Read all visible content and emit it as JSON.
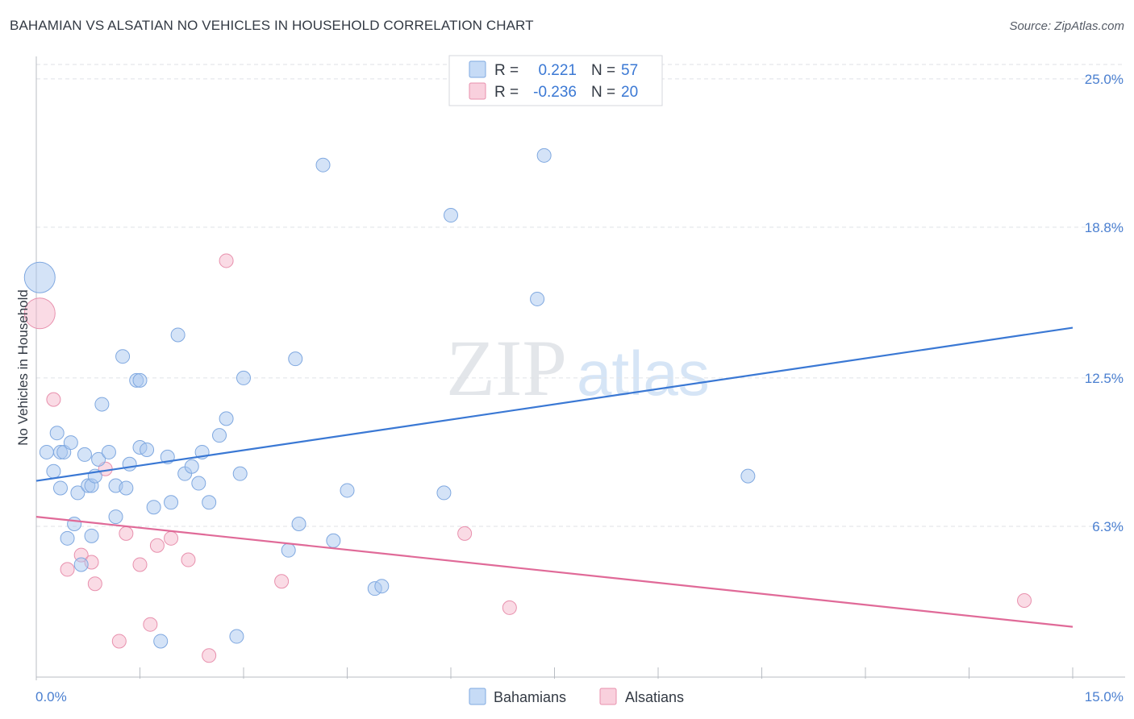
{
  "title": "BAHAMIAN VS ALSATIAN NO VEHICLES IN HOUSEHOLD CORRELATION CHART",
  "source": "Source: ZipAtlas.com",
  "watermark": {
    "zip": "ZIP",
    "atlas": "atlas"
  },
  "legend": {
    "rows": [
      {
        "r_label": "R =",
        "r_value": "0.221",
        "n_label": "N =",
        "n_value": "57",
        "color": "#a9c8f0"
      },
      {
        "r_label": "R =",
        "r_value": "-0.236",
        "n_label": "N =",
        "n_value": "20",
        "color": "#f5b8cb"
      }
    ]
  },
  "bottom_legend": [
    "Bahamians",
    "Alsatians"
  ],
  "chart_data": {
    "type": "scatter",
    "title": "BAHAMIAN VS ALSATIAN NO VEHICLES IN HOUSEHOLD CORRELATION CHART",
    "xlabel": "",
    "ylabel": "No Vehicles in Household",
    "xlim": [
      0,
      15
    ],
    "ylim": [
      0,
      25.6
    ],
    "x_tick_labels": [
      "0.0%",
      "15.0%"
    ],
    "y_ticks": [
      6.3,
      12.5,
      18.8,
      25.0
    ],
    "y_tick_labels": [
      "6.3%",
      "12.5%",
      "18.8%",
      "25.0%"
    ],
    "grid": "horizontal dashed",
    "legend_position": "top-center",
    "series": [
      {
        "name": "Bahamians",
        "color": "#a9c8f0",
        "line_color": "#3a78d4",
        "trend": {
          "x": [
            0,
            15
          ],
          "y": [
            8.2,
            14.6
          ]
        },
        "points": [
          [
            0.05,
            16.7
          ],
          [
            0.15,
            9.4
          ],
          [
            0.25,
            8.6
          ],
          [
            0.3,
            10.2
          ],
          [
            0.35,
            9.4
          ],
          [
            0.4,
            9.4
          ],
          [
            0.35,
            7.9
          ],
          [
            0.45,
            5.8
          ],
          [
            0.5,
            9.8
          ],
          [
            0.55,
            6.4
          ],
          [
            0.6,
            7.7
          ],
          [
            0.65,
            4.7
          ],
          [
            0.7,
            9.3
          ],
          [
            0.75,
            8.0
          ],
          [
            0.8,
            5.9
          ],
          [
            0.8,
            8.0
          ],
          [
            0.85,
            8.4
          ],
          [
            0.9,
            9.1
          ],
          [
            0.95,
            11.4
          ],
          [
            1.05,
            9.4
          ],
          [
            1.15,
            6.7
          ],
          [
            1.15,
            8.0
          ],
          [
            1.25,
            13.4
          ],
          [
            1.3,
            7.9
          ],
          [
            1.35,
            8.9
          ],
          [
            1.45,
            12.4
          ],
          [
            1.5,
            12.4
          ],
          [
            1.5,
            9.6
          ],
          [
            1.6,
            9.5
          ],
          [
            1.7,
            7.1
          ],
          [
            1.8,
            1.5
          ],
          [
            1.9,
            9.2
          ],
          [
            1.95,
            7.3
          ],
          [
            2.05,
            14.3
          ],
          [
            2.15,
            8.5
          ],
          [
            2.25,
            8.8
          ],
          [
            2.35,
            8.1
          ],
          [
            2.4,
            9.4
          ],
          [
            2.5,
            7.3
          ],
          [
            2.65,
            10.1
          ],
          [
            2.75,
            10.8
          ],
          [
            2.9,
            1.7
          ],
          [
            2.95,
            8.5
          ],
          [
            3.0,
            12.5
          ],
          [
            3.65,
            5.3
          ],
          [
            3.75,
            13.3
          ],
          [
            3.8,
            6.4
          ],
          [
            4.15,
            21.4
          ],
          [
            4.3,
            5.7
          ],
          [
            4.5,
            7.8
          ],
          [
            4.9,
            3.7
          ],
          [
            5.0,
            3.8
          ],
          [
            5.9,
            7.7
          ],
          [
            6.0,
            19.3
          ],
          [
            7.25,
            15.8
          ],
          [
            7.35,
            21.8
          ],
          [
            10.3,
            8.4
          ]
        ]
      },
      {
        "name": "Alsatians",
        "color": "#f5b8cb",
        "line_color": "#e06a98",
        "trend": {
          "x": [
            0,
            15
          ],
          "y": [
            6.7,
            2.1
          ]
        },
        "points": [
          [
            0.05,
            15.2
          ],
          [
            0.25,
            11.6
          ],
          [
            0.45,
            4.5
          ],
          [
            0.65,
            5.1
          ],
          [
            0.8,
            4.8
          ],
          [
            0.85,
            3.9
          ],
          [
            1.0,
            8.7
          ],
          [
            1.2,
            1.5
          ],
          [
            1.3,
            6.0
          ],
          [
            1.5,
            4.7
          ],
          [
            1.65,
            2.2
          ],
          [
            1.75,
            5.5
          ],
          [
            1.95,
            5.8
          ],
          [
            2.2,
            4.9
          ],
          [
            2.5,
            0.9
          ],
          [
            2.75,
            17.4
          ],
          [
            3.55,
            4.0
          ],
          [
            6.2,
            6.0
          ],
          [
            6.85,
            2.9
          ],
          [
            14.3,
            3.2
          ]
        ]
      }
    ]
  }
}
